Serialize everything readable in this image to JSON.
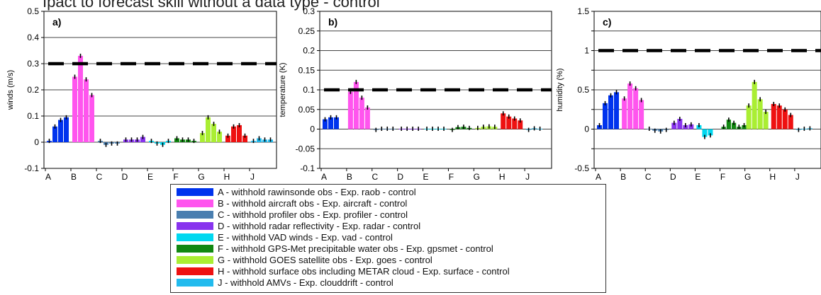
{
  "header_text": "Ipact to forecast skill without a data type - control",
  "chart_data": [
    {
      "type": "bar",
      "panel_label": "a)",
      "ylabel": "winds (m/s)",
      "ylim": [
        -0.1,
        0.5
      ],
      "yticks": [
        -0.1,
        0,
        0.1,
        0.2,
        0.3,
        0.4,
        0.5
      ],
      "ytick_labels": [
        "-0.1",
        "0",
        "0.1",
        "0.2",
        "0.3",
        "0.4",
        "0.5"
      ],
      "reference_line": 0.3,
      "groups": [
        {
          "label": "A",
          "color": "#0033ee",
          "values": [
            0.005,
            0.06,
            0.085,
            0.095
          ]
        },
        {
          "label": "B",
          "color": "#ff55ee",
          "values": [
            0.25,
            0.33,
            0.24,
            0.18
          ]
        },
        {
          "label": "C",
          "color": "#4a7fb0",
          "values": [
            0.005,
            -0.01,
            -0.005,
            -0.005
          ]
        },
        {
          "label": "D",
          "color": "#8833ee",
          "values": [
            0.01,
            0.01,
            0.01,
            0.02
          ]
        },
        {
          "label": "E",
          "color": "#00d8f0",
          "values": [
            0.005,
            -0.005,
            -0.01,
            0.005
          ]
        },
        {
          "label": "F",
          "color": "#118811",
          "values": [
            0.015,
            0.01,
            0.01,
            0.005
          ]
        },
        {
          "label": "G",
          "color": "#aaee33",
          "values": [
            0.035,
            0.095,
            0.07,
            0.04
          ]
        },
        {
          "label": "H",
          "color": "#ee1111",
          "values": [
            0.025,
            0.06,
            0.065,
            0.025
          ]
        },
        {
          "label": "J",
          "color": "#22bbee",
          "values": [
            0.005,
            0.015,
            0.01,
            0.01
          ]
        }
      ]
    },
    {
      "type": "bar",
      "panel_label": "b)",
      "ylabel": "temperature (K)",
      "ylim": [
        -0.1,
        0.3
      ],
      "yticks": [
        -0.1,
        -0.05,
        0,
        0.05,
        0.1,
        0.15,
        0.2,
        0.25,
        0.3
      ],
      "ytick_labels": [
        "-0.1",
        "-0.05",
        "0",
        "0.05",
        "0.1",
        "0.15",
        "0.2",
        "0.25",
        "0.3"
      ],
      "reference_line": 0.1,
      "groups": [
        {
          "label": "A",
          "color": "#0033ee",
          "values": [
            0.025,
            0.03,
            0.03
          ]
        },
        {
          "label": "B",
          "color": "#ff55ee",
          "values": [
            0.095,
            0.12,
            0.08,
            0.055
          ]
        },
        {
          "label": "C",
          "color": "#4a7fb0",
          "values": [
            -0.002,
            0.001,
            0.001,
            0.001
          ]
        },
        {
          "label": "D",
          "color": "#8833ee",
          "values": [
            0.001,
            0.001,
            0.001,
            0.001
          ]
        },
        {
          "label": "E",
          "color": "#00d8f0",
          "values": [
            0.001,
            0.001,
            0.001,
            0.001
          ]
        },
        {
          "label": "F",
          "color": "#118811",
          "values": [
            -0.002,
            0.005,
            0.006,
            0.003
          ]
        },
        {
          "label": "G",
          "color": "#aaee33",
          "values": [
            0.003,
            0.006,
            0.007,
            0.006
          ]
        },
        {
          "label": "H",
          "color": "#ee1111",
          "values": [
            0.04,
            0.032,
            0.027,
            0.022
          ]
        },
        {
          "label": "J",
          "color": "#22bbee",
          "values": [
            -0.002,
            0.002,
            0.001
          ]
        }
      ]
    },
    {
      "type": "bar",
      "panel_label": "c)",
      "ylabel": "humidity (%)",
      "ylim": [
        -0.5,
        1.5
      ],
      "yticks": [
        -0.5,
        -0.25,
        0,
        0.25,
        0.5,
        0.75,
        1,
        1.25,
        1.5
      ],
      "ytick_labels": [
        "-0.5",
        "",
        "0",
        "",
        "0.5",
        "",
        "1",
        "",
        "1.5"
      ],
      "reference_line": 1,
      "groups": [
        {
          "label": "A",
          "color": "#0033ee",
          "values": [
            0.05,
            0.33,
            0.43,
            0.47
          ]
        },
        {
          "label": "B",
          "color": "#ff55ee",
          "values": [
            0.39,
            0.58,
            0.52,
            0.37
          ]
        },
        {
          "label": "C",
          "color": "#4a7fb0",
          "values": [
            0.005,
            -0.02,
            -0.03,
            -0.01
          ]
        },
        {
          "label": "D",
          "color": "#8833ee",
          "values": [
            0.08,
            0.13,
            0.05,
            0.06
          ]
        },
        {
          "label": "E",
          "color": "#00d8f0",
          "values": [
            0.05,
            -0.1,
            -0.08
          ]
        },
        {
          "label": "F",
          "color": "#118811",
          "values": [
            0.03,
            0.12,
            0.08,
            0.03,
            0.05
          ]
        },
        {
          "label": "G",
          "color": "#aaee33",
          "values": [
            0.3,
            0.6,
            0.38,
            0.22
          ]
        },
        {
          "label": "H",
          "color": "#ee1111",
          "values": [
            0.32,
            0.3,
            0.25,
            0.18
          ]
        },
        {
          "label": "J",
          "color": "#22bbee",
          "values": [
            -0.01,
            0.005,
            0.01
          ]
        }
      ]
    }
  ],
  "legend": [
    {
      "label": "A - withhold rawinsonde obs - Exp. raob - control",
      "color": "#0033ee"
    },
    {
      "label": "B - withhold aircraft obs - Exp. aircraft - control",
      "color": "#ff55ee"
    },
    {
      "label": "C - withhold profiler obs - Exp. profiler - control",
      "color": "#4a7fb0"
    },
    {
      "label": "D - withhold radar reflectivity - Exp. radar - control",
      "color": "#8833ee"
    },
    {
      "label": "E - withhold VAD winds - Exp. vad - control",
      "color": "#00d8f0"
    },
    {
      "label": "F - withhold GPS-Met precipitable water obs - Exp. gpsmet - control",
      "color": "#118811"
    },
    {
      "label": "G - withhold GOES satellite obs - Exp. goes - control",
      "color": "#aaee33"
    },
    {
      "label": "H - withhold surface obs including METAR cloud - Exp. surface - control",
      "color": "#ee1111"
    },
    {
      "label": "J - withhold AMVs - Exp. clouddrift - control",
      "color": "#22bbee"
    }
  ]
}
